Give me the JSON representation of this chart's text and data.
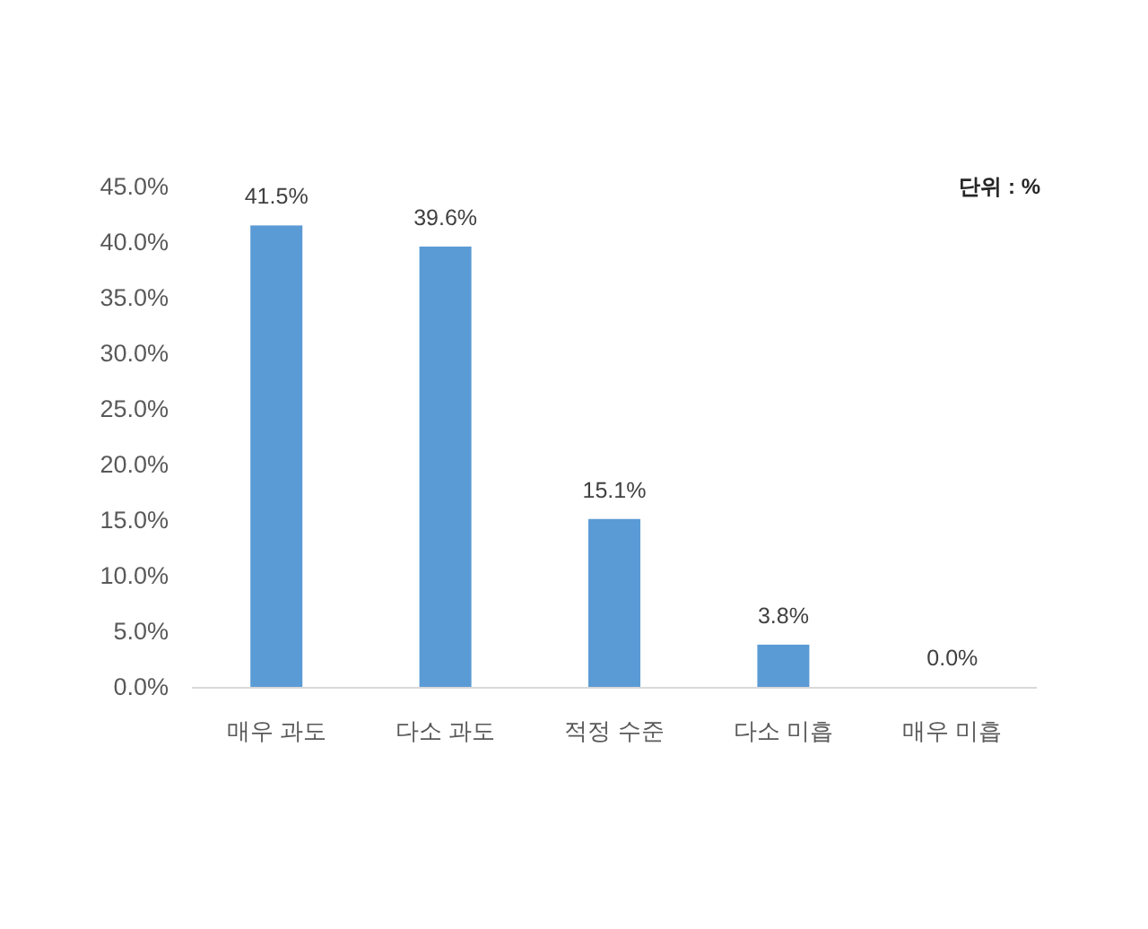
{
  "chart_data": {
    "type": "bar",
    "categories": [
      "매우 과도",
      "다소 과도",
      "적정 수준",
      "다소 미흡",
      "매우 미흡"
    ],
    "values": [
      41.5,
      39.6,
      15.1,
      3.8,
      0.0
    ],
    "value_labels": [
      "41.5%",
      "39.6%",
      "15.1%",
      "3.8%",
      "0.0%"
    ],
    "color": "#5b9bd5",
    "ylim": [
      0,
      45
    ],
    "yticks": [
      {
        "value": 0,
        "label": "0.0%"
      },
      {
        "value": 5,
        "label": "5.0%"
      },
      {
        "value": 10,
        "label": "10.0%"
      },
      {
        "value": 15,
        "label": "15.0%"
      },
      {
        "value": 20,
        "label": "20.0%"
      },
      {
        "value": 25,
        "label": "25.0%"
      },
      {
        "value": 30,
        "label": "30.0%"
      },
      {
        "value": 35,
        "label": "35.0%"
      },
      {
        "value": 40,
        "label": "40.0%"
      },
      {
        "value": 45,
        "label": "45.0%"
      }
    ],
    "annotations": [
      "단위 : %"
    ]
  }
}
